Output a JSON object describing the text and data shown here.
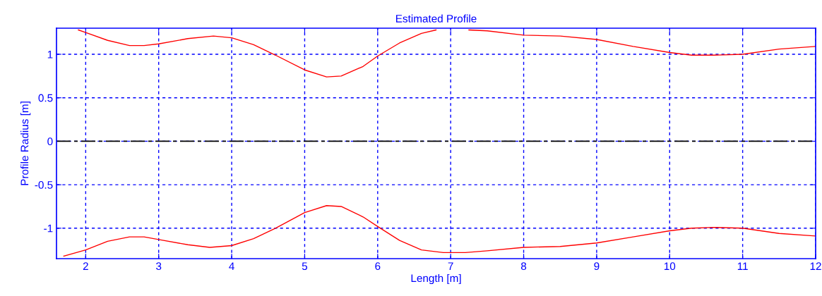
{
  "chart_data": {
    "type": "line",
    "title": "Estimated Profile",
    "xlabel": "Length [m]",
    "ylabel": "Profile Radius [m]",
    "xlim": [
      1.6,
      12
    ],
    "ylim": [
      -1.35,
      1.3
    ],
    "xticks": [
      2,
      3,
      4,
      5,
      6,
      7,
      8,
      9,
      10,
      11,
      12
    ],
    "yticks": [
      -1,
      -0.5,
      0,
      0.5,
      1
    ],
    "grid": true,
    "series": [
      {
        "color": "#ff0000",
        "x": [
          1.9,
          2,
          2.3,
          2.6,
          2.8,
          3,
          3.4,
          3.75,
          4,
          4.3,
          4.6,
          5,
          5.3,
          5.5,
          5.8,
          6,
          6.3,
          6.6,
          6.8,
          7.0,
          7.25,
          7.5,
          8,
          8.5,
          9,
          9.5,
          10,
          10.3,
          10.6,
          11,
          11.5,
          12
        ],
        "values": [
          1.28,
          1.25,
          1.16,
          1.1,
          1.1,
          1.12,
          1.18,
          1.21,
          1.19,
          1.11,
          0.99,
          0.82,
          0.74,
          0.75,
          0.86,
          0.98,
          1.13,
          1.24,
          1.28,
          null,
          1.28,
          1.27,
          1.22,
          1.21,
          1.17,
          1.09,
          1.02,
          0.99,
          0.99,
          1.0,
          1.06,
          1.09
        ]
      },
      {
        "color": "#ff0000",
        "x": [
          1.7,
          2,
          2.3,
          2.6,
          2.8,
          3,
          3.4,
          3.7,
          4,
          4.3,
          4.6,
          5,
          5.3,
          5.5,
          5.8,
          6,
          6.3,
          6.6,
          6.9,
          7.2,
          7.5,
          8,
          8.5,
          9,
          9.5,
          10,
          10.3,
          10.6,
          11,
          11.5,
          12
        ],
        "values": [
          -1.32,
          -1.25,
          -1.15,
          -1.1,
          -1.1,
          -1.13,
          -1.19,
          -1.22,
          -1.2,
          -1.12,
          -1.0,
          -0.82,
          -0.74,
          -0.75,
          -0.87,
          -0.98,
          -1.14,
          -1.25,
          -1.28,
          -1.28,
          -1.26,
          -1.22,
          -1.21,
          -1.17,
          -1.1,
          -1.03,
          -1.0,
          -0.99,
          -1.0,
          -1.06,
          -1.09
        ]
      }
    ],
    "ref_lines": [
      {
        "axis": "y",
        "value": 0,
        "color": "#000000",
        "line_style": "dashdot"
      }
    ]
  }
}
